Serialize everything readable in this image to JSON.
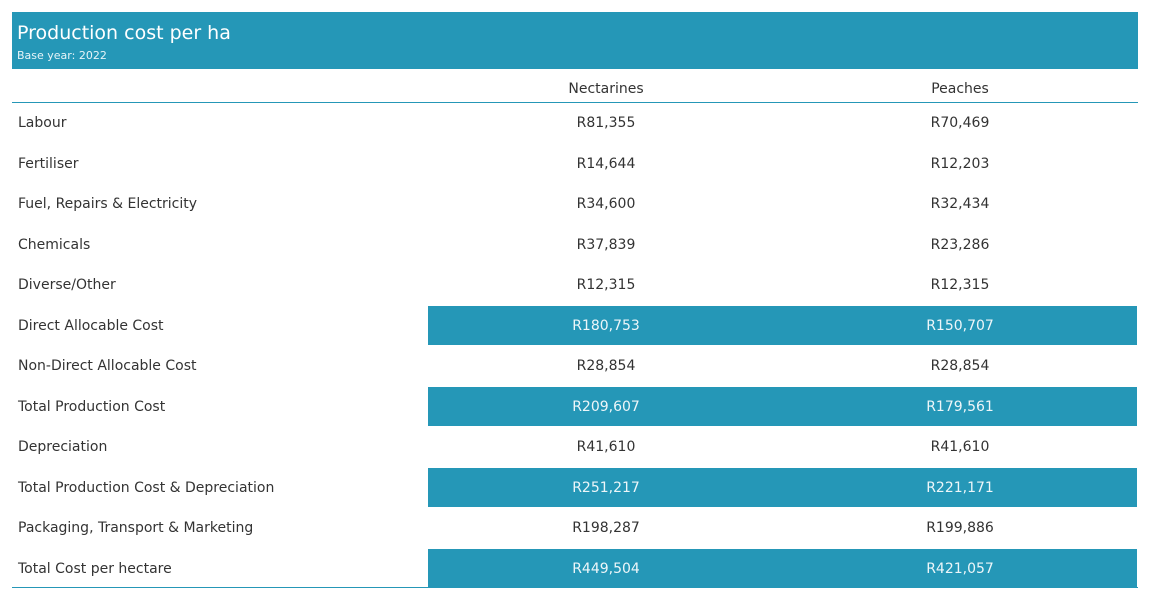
{
  "header": {
    "title": "Production cost per ha",
    "subtitle": "Base year: 2022"
  },
  "columns": [
    "Nectarines",
    "Peaches"
  ],
  "rows": [
    {
      "label": "Labour",
      "nectarines": "R81,355",
      "peaches": "R70,469",
      "highlight": false
    },
    {
      "label": "Fertiliser",
      "nectarines": "R14,644",
      "peaches": "R12,203",
      "highlight": false
    },
    {
      "label": "Fuel, Repairs & Electricity",
      "nectarines": "R34,600",
      "peaches": "R32,434",
      "highlight": false
    },
    {
      "label": "Chemicals",
      "nectarines": "R37,839",
      "peaches": "R23,286",
      "highlight": false
    },
    {
      "label": "Diverse/Other",
      "nectarines": "R12,315",
      "peaches": "R12,315",
      "highlight": false
    },
    {
      "label": "Direct Allocable Cost",
      "nectarines": "R180,753",
      "peaches": "R150,707",
      "highlight": true
    },
    {
      "label": "Non-Direct Allocable Cost",
      "nectarines": "R28,854",
      "peaches": "R28,854",
      "highlight": false
    },
    {
      "label": "Total Production Cost",
      "nectarines": "R209,607",
      "peaches": "R179,561",
      "highlight": true
    },
    {
      "label": "Depreciation",
      "nectarines": "R41,610",
      "peaches": "R41,610",
      "highlight": false
    },
    {
      "label": "Total Production Cost & Depreciation",
      "nectarines": "R251,217",
      "peaches": "R221,171",
      "highlight": true
    },
    {
      "label": "Packaging, Transport & Marketing",
      "nectarines": "R198,287",
      "peaches": "R199,886",
      "highlight": false
    },
    {
      "label": "Total Cost per hectare",
      "nectarines": "R449,504",
      "peaches": "R421,057",
      "highlight": true
    }
  ],
  "colors": {
    "accent": "#2597b7",
    "text": "#333333",
    "highlight_text": "#ffffff"
  }
}
